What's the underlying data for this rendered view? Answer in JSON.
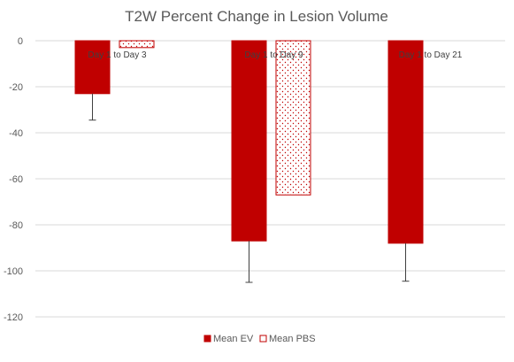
{
  "chart_data": {
    "type": "bar",
    "title": "T2W Percent Change in Lesion Volume",
    "categories": [
      "Day 1 to Day 3",
      "Day 1 to Day 9",
      "Day 1 to Day 21"
    ],
    "series": [
      {
        "name": "Mean EV",
        "values": [
          -23,
          -87,
          -88
        ],
        "error": [
          11.5,
          18,
          16.5
        ],
        "color": "#c00000",
        "pattern": "solid"
      },
      {
        "name": "Mean PBS",
        "values": [
          -3,
          -67,
          null
        ],
        "error": [
          null,
          null,
          null
        ],
        "color": "#c00000",
        "pattern": "dotted"
      }
    ],
    "ylim": [
      -120,
      0
    ],
    "yticks": [
      0,
      -20,
      -40,
      -60,
      -80,
      -100,
      -120
    ],
    "xlabel": "",
    "ylabel": "",
    "grid": true,
    "legend_position": "bottom"
  }
}
